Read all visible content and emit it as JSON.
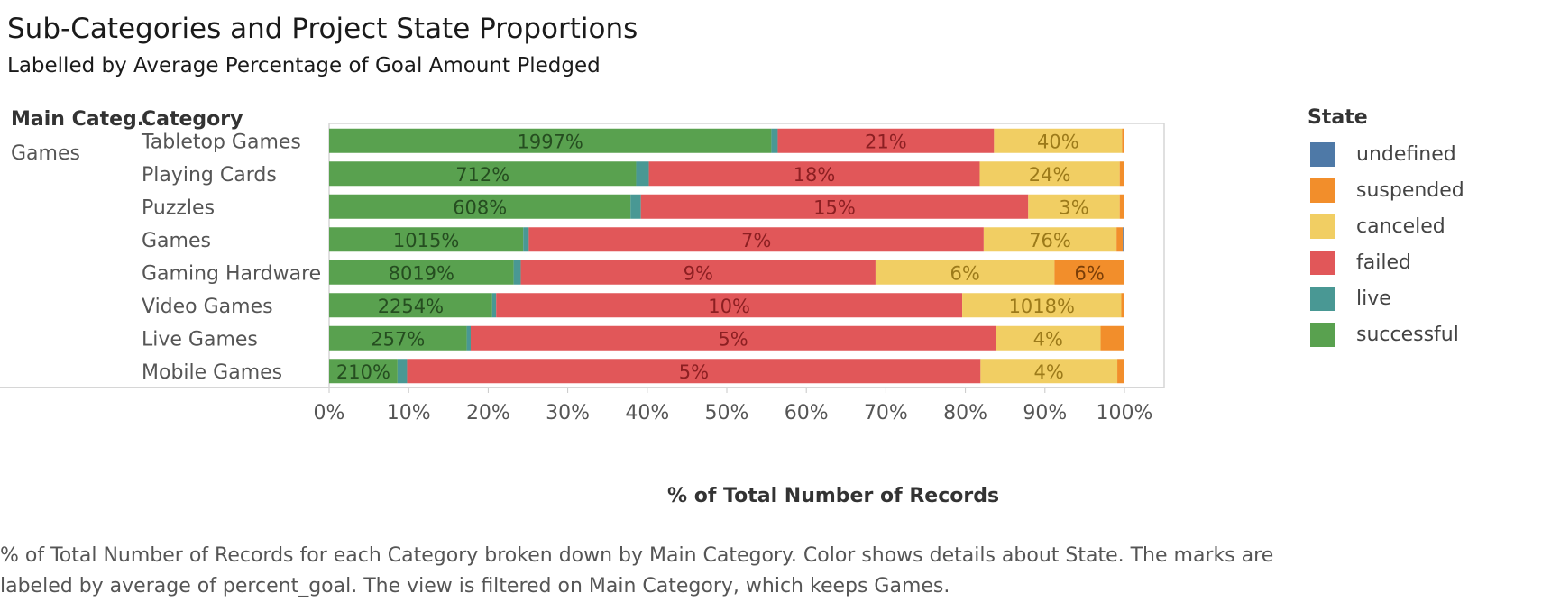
{
  "title": "Sub-Categories and Project State Proportions",
  "subtitle": "Labelled by Average Percentage of Goal Amount Pledged",
  "headers": {
    "main": "Main Categ..",
    "category": "Category"
  },
  "main_category": "Games",
  "caption": "% of Total Number of Records for each Category broken down by Main Category.  Color shows details about State.  The marks are labeled by average of percent_goal. The view is filtered on Main Category, which keeps Games.",
  "legend_title": "State",
  "colors": {
    "undefined": "#4e79a7",
    "suspended": "#f28e2b",
    "canceled": "#f1ce63",
    "failed": "#e15759",
    "live": "#499894",
    "successful": "#59a14f"
  },
  "chart_data": {
    "type": "bar",
    "orientation": "horizontal",
    "stacked": true,
    "xlabel": "% of Total Number of Records",
    "xlim": [
      0,
      100
    ],
    "xticks": [
      "0%",
      "10%",
      "20%",
      "30%",
      "40%",
      "50%",
      "60%",
      "70%",
      "80%",
      "90%",
      "100%"
    ],
    "legend": [
      "undefined",
      "suspended",
      "canceled",
      "failed",
      "live",
      "successful"
    ],
    "legend_position": "right",
    "categories": [
      "Tabletop Games",
      "Playing Cards",
      "Puzzles",
      "Games",
      "Gaming Hardware",
      "Video Games",
      "Live Games",
      "Mobile Games"
    ],
    "series": [
      {
        "name": "successful",
        "values": [
          55.6,
          38.6,
          37.9,
          24.4,
          23.2,
          20.5,
          17.3,
          8.6
        ],
        "labels": [
          "1997%",
          "712%",
          "608%",
          "1015%",
          "8019%",
          "2254%",
          "257%",
          "210%"
        ]
      },
      {
        "name": "live",
        "values": [
          0.8,
          1.6,
          1.3,
          0.7,
          0.9,
          0.5,
          0.5,
          1.2
        ],
        "labels": [
          "",
          "",
          "",
          "",
          "",
          "",
          "",
          ""
        ]
      },
      {
        "name": "failed",
        "values": [
          27.2,
          41.6,
          48.7,
          57.2,
          44.6,
          58.6,
          66.0,
          72.1
        ],
        "labels": [
          "21%",
          "18%",
          "15%",
          "7%",
          "9%",
          "10%",
          "5%",
          "5%"
        ]
      },
      {
        "name": "canceled",
        "values": [
          16.1,
          17.6,
          11.5,
          16.7,
          22.5,
          20.0,
          13.2,
          17.2
        ],
        "labels": [
          "40%",
          "24%",
          "3%",
          "76%",
          "6%",
          "1018%",
          "4%",
          "4%"
        ]
      },
      {
        "name": "suspended",
        "values": [
          0.3,
          0.6,
          0.6,
          0.8,
          8.8,
          0.4,
          3.0,
          0.9
        ],
        "labels": [
          "",
          "",
          "",
          "",
          "6%",
          "",
          "",
          ""
        ]
      },
      {
        "name": "undefined",
        "values": [
          0,
          0,
          0,
          0.2,
          0,
          0,
          0,
          0
        ],
        "labels": [
          "",
          "",
          "",
          "",
          "",
          "",
          "",
          ""
        ]
      }
    ]
  }
}
